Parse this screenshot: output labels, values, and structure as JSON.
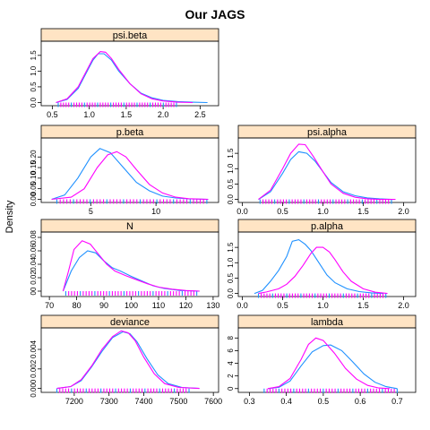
{
  "title": "Our JAGS",
  "ylabel": "Density",
  "colors": {
    "chain1": "#1e90ff",
    "chain2": "#ff00ff",
    "strip": "#ffe4c4",
    "rug": "#ff00ff",
    "rug2": "#1e90ff"
  },
  "chart_data": [
    {
      "type": "line",
      "panel": "psi.beta",
      "xlim": [
        0.35,
        2.75
      ],
      "ylim": [
        -0.1,
        1.95
      ],
      "xticks": [
        0.5,
        1.0,
        1.5,
        2.0,
        2.5
      ],
      "xtick_labels": [
        "0.5",
        "1.0",
        "1.5",
        "2.0",
        "2.5"
      ],
      "yticks": [
        0.0,
        0.5,
        1.0,
        1.5
      ],
      "ytick_labels": [
        "0.0",
        "0.5",
        "1.0",
        "1.5"
      ],
      "rug": [
        0.58,
        2.18
      ],
      "series": [
        {
          "x": [
            0.55,
            0.7,
            0.85,
            0.95,
            1.05,
            1.12,
            1.2,
            1.3,
            1.4,
            1.55,
            1.7,
            1.85,
            2.0,
            2.2,
            2.4,
            2.6
          ],
          "y": [
            0.0,
            0.1,
            0.45,
            0.9,
            1.35,
            1.55,
            1.55,
            1.35,
            1.0,
            0.6,
            0.3,
            0.15,
            0.07,
            0.03,
            0.01,
            0.0
          ]
        },
        {
          "x": [
            0.55,
            0.7,
            0.85,
            0.95,
            1.05,
            1.15,
            1.22,
            1.3,
            1.4,
            1.55,
            1.7,
            1.85,
            2.0,
            2.2,
            2.4
          ],
          "y": [
            0.0,
            0.12,
            0.5,
            0.95,
            1.4,
            1.62,
            1.6,
            1.4,
            1.05,
            0.6,
            0.28,
            0.12,
            0.05,
            0.01,
            0.0
          ]
        }
      ]
    },
    {
      "type": "line",
      "panel": "p.beta",
      "xlim": [
        1.2,
        14.8
      ],
      "ylim": [
        -0.015,
        0.29
      ],
      "xticks": [
        5,
        10
      ],
      "xtick_labels": [
        "5",
        "10"
      ],
      "yticks": [
        0.0,
        0.05,
        0.1,
        0.15,
        0.2
      ],
      "ytick_labels": [
        "0.00",
        "0.05",
        "0.10",
        "0.15",
        "0.20"
      ],
      "rug": [
        2.4,
        13.9
      ],
      "series": [
        {
          "x": [
            2,
            3,
            4,
            5,
            5.7,
            6.5,
            7.5,
            8.5,
            9.5,
            10.5,
            11.5,
            12.5,
            14
          ],
          "y": [
            0.0,
            0.02,
            0.1,
            0.2,
            0.24,
            0.22,
            0.15,
            0.08,
            0.04,
            0.015,
            0.006,
            0.002,
            0.0
          ]
        },
        {
          "x": [
            2,
            3.5,
            4.5,
            5.5,
            6.3,
            7,
            7.7,
            8.5,
            9.5,
            10.5,
            11.5,
            12.5,
            14
          ],
          "y": [
            0.0,
            0.01,
            0.05,
            0.15,
            0.21,
            0.225,
            0.2,
            0.14,
            0.07,
            0.03,
            0.01,
            0.003,
            0.0
          ]
        }
      ]
    },
    {
      "type": "line",
      "panel": "psi.alpha",
      "xlim": [
        -0.05,
        2.15
      ],
      "ylim": [
        -0.1,
        2.0
      ],
      "xticks": [
        0.0,
        0.5,
        1.0,
        1.5,
        2.0
      ],
      "xtick_labels": [
        "0.0",
        "0.5",
        "1.0",
        "1.5",
        "2.0"
      ],
      "yticks": [
        0.0,
        0.5,
        1.0,
        1.5
      ],
      "ytick_labels": [
        "0.0",
        "0.5",
        "1.0",
        "1.5"
      ],
      "rug": [
        0.22,
        1.85
      ],
      "series": [
        {
          "x": [
            0.2,
            0.35,
            0.5,
            0.6,
            0.7,
            0.8,
            0.9,
            1.0,
            1.1,
            1.25,
            1.4,
            1.55,
            1.7,
            1.85
          ],
          "y": [
            0.0,
            0.25,
            0.85,
            1.3,
            1.55,
            1.5,
            1.25,
            0.9,
            0.55,
            0.25,
            0.12,
            0.05,
            0.02,
            0.0
          ]
        },
        {
          "x": [
            0.2,
            0.35,
            0.5,
            0.6,
            0.7,
            0.78,
            0.88,
            1.0,
            1.1,
            1.25,
            1.4,
            1.55,
            1.7,
            1.9
          ],
          "y": [
            0.0,
            0.3,
            1.0,
            1.5,
            1.8,
            1.78,
            1.4,
            0.9,
            0.5,
            0.2,
            0.07,
            0.02,
            0.0,
            0.0
          ]
        }
      ]
    },
    {
      "type": "line",
      "panel": "N",
      "xlim": [
        67,
        132
      ],
      "ylim": [
        -0.008,
        0.088
      ],
      "xticks": [
        70,
        80,
        90,
        100,
        110,
        120,
        130
      ],
      "xtick_labels": [
        "70",
        "80",
        "90",
        "100",
        "110",
        "120",
        "130"
      ],
      "yticks": [
        0.0,
        0.02,
        0.04,
        0.06,
        0.08
      ],
      "ytick_labels": [
        "00",
        "0.02",
        "0.04",
        "0.06",
        "0.08"
      ],
      "rug": [
        76,
        124
      ],
      "series": [
        {
          "x": [
            75,
            78,
            81,
            84,
            87,
            90,
            93,
            96,
            100,
            104,
            108,
            112,
            118,
            125
          ],
          "y": [
            0.0,
            0.03,
            0.05,
            0.06,
            0.057,
            0.045,
            0.035,
            0.03,
            0.022,
            0.015,
            0.008,
            0.004,
            0.001,
            0.0
          ]
        },
        {
          "x": [
            75,
            77,
            79,
            82,
            85,
            88,
            91,
            94,
            98,
            102,
            106,
            110,
            115,
            120,
            125
          ],
          "y": [
            0.0,
            0.03,
            0.062,
            0.075,
            0.07,
            0.055,
            0.04,
            0.03,
            0.023,
            0.017,
            0.011,
            0.006,
            0.003,
            0.001,
            0.0
          ]
        }
      ]
    },
    {
      "type": "line",
      "panel": "p.alpha",
      "xlim": [
        -0.05,
        2.15
      ],
      "ylim": [
        -0.1,
        2.0
      ],
      "xticks": [
        0.0,
        0.5,
        1.0,
        1.5,
        2.0
      ],
      "xtick_labels": [
        "0.0",
        "0.5",
        "1.0",
        "1.5",
        "2.0"
      ],
      "yticks": [
        0.0,
        0.5,
        1.0,
        1.5
      ],
      "ytick_labels": [
        "0.0",
        "0.5",
        "1.0",
        "1.5"
      ],
      "rug": [
        0.2,
        1.78
      ],
      "series": [
        {
          "x": [
            0.15,
            0.25,
            0.35,
            0.45,
            0.55,
            0.62,
            0.7,
            0.78,
            0.85,
            0.95,
            1.05,
            1.15,
            1.3,
            1.45,
            1.6,
            1.75
          ],
          "y": [
            0.0,
            0.1,
            0.4,
            0.75,
            1.2,
            1.7,
            1.75,
            1.6,
            1.4,
            1.0,
            0.6,
            0.35,
            0.15,
            0.06,
            0.02,
            0.0
          ]
        },
        {
          "x": [
            0.2,
            0.3,
            0.45,
            0.55,
            0.65,
            0.75,
            0.85,
            0.92,
            1.0,
            1.08,
            1.15,
            1.25,
            1.35,
            1.5,
            1.65,
            1.8
          ],
          "y": [
            0.0,
            0.05,
            0.15,
            0.3,
            0.55,
            0.9,
            1.3,
            1.5,
            1.5,
            1.35,
            1.1,
            0.7,
            0.4,
            0.15,
            0.04,
            0.0
          ]
        }
      ]
    },
    {
      "type": "line",
      "panel": "deviance",
      "xlim": [
        7105,
        7615
      ],
      "ylim": [
        -0.0004,
        0.0062
      ],
      "xticks": [
        7200,
        7300,
        7400,
        7500,
        7600
      ],
      "xtick_labels": [
        "7200",
        "7300",
        "7400",
        "7500",
        "7600"
      ],
      "yticks": [
        0.0,
        0.002,
        0.004
      ],
      "ytick_labels": [
        "0.000",
        "0.002",
        "0.004"
      ],
      "rug": [
        7150,
        7530
      ],
      "series": [
        {
          "x": [
            7150,
            7190,
            7220,
            7250,
            7280,
            7310,
            7340,
            7360,
            7380,
            7410,
            7440,
            7470,
            7510,
            7560
          ],
          "y": [
            0.0,
            0.0002,
            0.0008,
            0.0022,
            0.0038,
            0.0052,
            0.0058,
            0.0056,
            0.0048,
            0.003,
            0.0014,
            0.0005,
            0.0001,
            0.0
          ]
        },
        {
          "x": [
            7150,
            7190,
            7220,
            7250,
            7280,
            7310,
            7335,
            7355,
            7375,
            7400,
            7430,
            7460,
            7500,
            7560
          ],
          "y": [
            0.0,
            0.0002,
            0.0009,
            0.0023,
            0.004,
            0.0053,
            0.0059,
            0.0057,
            0.0049,
            0.0032,
            0.0015,
            0.0005,
            0.0001,
            0.0
          ]
        }
      ]
    },
    {
      "type": "line",
      "panel": "lambda",
      "xlim": [
        0.27,
        0.75
      ],
      "ylim": [
        -0.6,
        9.6
      ],
      "xticks": [
        0.3,
        0.4,
        0.5,
        0.6,
        0.7
      ],
      "xtick_labels": [
        "0.3",
        "0.4",
        "0.5",
        "0.6",
        "0.7"
      ],
      "yticks": [
        0,
        2,
        4,
        6,
        8
      ],
      "ytick_labels": [
        "0",
        "2",
        "4",
        "6",
        "8"
      ],
      "rug": [
        0.34,
        0.7
      ],
      "series": [
        {
          "x": [
            0.35,
            0.38,
            0.41,
            0.44,
            0.47,
            0.5,
            0.52,
            0.55,
            0.58,
            0.61,
            0.64,
            0.67,
            0.7
          ],
          "y": [
            0.0,
            0.2,
            1.2,
            3.6,
            5.8,
            6.8,
            6.9,
            6.0,
            4.2,
            2.3,
            1.0,
            0.3,
            0.0
          ]
        },
        {
          "x": [
            0.35,
            0.38,
            0.41,
            0.44,
            0.46,
            0.48,
            0.5,
            0.53,
            0.56,
            0.59,
            0.62,
            0.65,
            0.68
          ],
          "y": [
            0.0,
            0.3,
            1.6,
            4.6,
            7.0,
            8.0,
            7.6,
            5.6,
            3.2,
            1.5,
            0.5,
            0.1,
            0.0
          ]
        }
      ]
    }
  ]
}
